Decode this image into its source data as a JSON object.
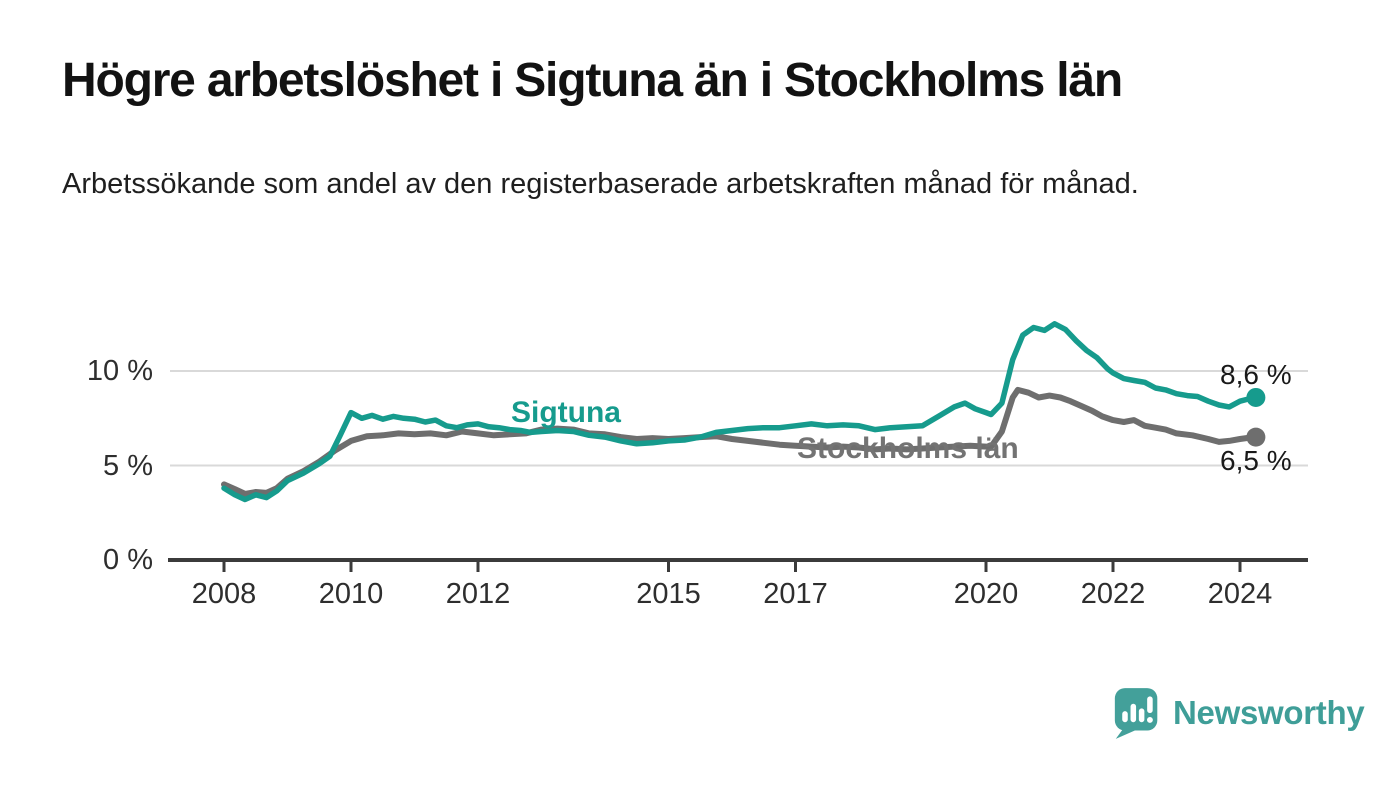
{
  "title": "Högre arbetslöshet i Sigtuna än i Stockholms län",
  "subtitle": "Arbetssökande som andel av den registerbaserade arbetskraften månad för månad.",
  "footer": {
    "brand": "Newsworthy",
    "logo_icon": "bar-chart-speech-bubble-icon"
  },
  "colors": {
    "sigtuna": "#169b8d",
    "stockholm": "#6e6e6e",
    "stockholm_label": "#737373",
    "grid": "#d9d9d9",
    "axis": "#3b3b3b",
    "logo": "#43a09a"
  },
  "chart_data": {
    "type": "line",
    "xlabel": "",
    "ylabel": "",
    "x_ticks": [
      2008,
      2010,
      2012,
      2015,
      2017,
      2020,
      2022,
      2024
    ],
    "x_tick_labels": [
      "2008",
      "2010",
      "2012",
      "2015",
      "2017",
      "2020",
      "2022",
      "2024"
    ],
    "y_ticks": [
      0,
      5,
      10
    ],
    "y_tick_labels": [
      "0 %",
      "5 %",
      "10 %"
    ],
    "ylim": [
      0,
      13.5
    ],
    "xlim": [
      2007.15,
      2025.05
    ],
    "grid": "horizontal",
    "legend_position": "inline-labels",
    "series": [
      {
        "name": "Stockholms län",
        "color": "#6e6e6e",
        "end_label": "6,5 %",
        "end_value": 6.5,
        "x": [
          2008.0,
          2008.17,
          2008.33,
          2008.5,
          2008.67,
          2008.83,
          2009.0,
          2009.25,
          2009.5,
          2009.75,
          2010.0,
          2010.25,
          2010.5,
          2010.75,
          2011.0,
          2011.25,
          2011.5,
          2011.75,
          2012.0,
          2012.25,
          2012.5,
          2012.75,
          2013.0,
          2013.25,
          2013.5,
          2013.75,
          2014.0,
          2014.25,
          2014.5,
          2014.75,
          2015.0,
          2015.25,
          2015.5,
          2015.75,
          2016.0,
          2016.25,
          2016.5,
          2016.75,
          2017.0,
          2017.25,
          2017.5,
          2017.75,
          2018.0,
          2018.25,
          2018.5,
          2018.75,
          2019.0,
          2019.25,
          2019.5,
          2019.75,
          2020.0,
          2020.08,
          2020.25,
          2020.42,
          2020.5,
          2020.67,
          2020.83,
          2021.0,
          2021.17,
          2021.33,
          2021.5,
          2021.67,
          2021.83,
          2022.0,
          2022.17,
          2022.33,
          2022.5,
          2022.67,
          2022.83,
          2023.0,
          2023.25,
          2023.5,
          2023.67,
          2023.83,
          2024.0,
          2024.17,
          2024.25
        ],
        "y": [
          4.0,
          3.75,
          3.5,
          3.6,
          3.55,
          3.8,
          4.3,
          4.7,
          5.2,
          5.8,
          6.3,
          6.55,
          6.6,
          6.7,
          6.65,
          6.7,
          6.6,
          6.8,
          6.7,
          6.6,
          6.65,
          6.7,
          6.9,
          6.95,
          6.9,
          6.7,
          6.65,
          6.5,
          6.4,
          6.45,
          6.4,
          6.45,
          6.5,
          6.55,
          6.4,
          6.3,
          6.2,
          6.1,
          6.05,
          6.0,
          5.95,
          6.0,
          5.95,
          5.85,
          5.9,
          5.85,
          5.9,
          5.95,
          6.0,
          6.05,
          6.0,
          6.0,
          6.8,
          8.6,
          9.0,
          8.85,
          8.6,
          8.7,
          8.6,
          8.4,
          8.15,
          7.9,
          7.6,
          7.4,
          7.3,
          7.4,
          7.1,
          7.0,
          6.9,
          6.7,
          6.6,
          6.4,
          6.25,
          6.3,
          6.4,
          6.48,
          6.5
        ]
      },
      {
        "name": "Sigtuna",
        "color": "#169b8d",
        "end_label": "8,6 %",
        "end_value": 8.6,
        "x": [
          2008.0,
          2008.17,
          2008.33,
          2008.5,
          2008.67,
          2008.83,
          2009.0,
          2009.25,
          2009.5,
          2009.67,
          2009.83,
          2010.0,
          2010.17,
          2010.33,
          2010.5,
          2010.67,
          2010.83,
          2011.0,
          2011.17,
          2011.33,
          2011.5,
          2011.67,
          2011.83,
          2012.0,
          2012.17,
          2012.33,
          2012.5,
          2012.67,
          2012.83,
          2013.0,
          2013.25,
          2013.5,
          2013.75,
          2014.0,
          2014.25,
          2014.5,
          2014.75,
          2015.0,
          2015.25,
          2015.5,
          2015.75,
          2016.0,
          2016.25,
          2016.5,
          2016.75,
          2017.0,
          2017.25,
          2017.5,
          2017.75,
          2018.0,
          2018.25,
          2018.5,
          2018.75,
          2019.0,
          2019.25,
          2019.5,
          2019.67,
          2019.83,
          2020.0,
          2020.08,
          2020.25,
          2020.42,
          2020.58,
          2020.75,
          2020.92,
          2021.08,
          2021.25,
          2021.42,
          2021.58,
          2021.75,
          2021.92,
          2022.0,
          2022.17,
          2022.33,
          2022.5,
          2022.67,
          2022.83,
          2023.0,
          2023.17,
          2023.33,
          2023.5,
          2023.67,
          2023.83,
          2024.0,
          2024.17,
          2024.25
        ],
        "y": [
          3.8,
          3.45,
          3.2,
          3.45,
          3.3,
          3.65,
          4.2,
          4.6,
          5.1,
          5.5,
          6.6,
          7.8,
          7.5,
          7.65,
          7.45,
          7.6,
          7.5,
          7.45,
          7.3,
          7.4,
          7.1,
          7.0,
          7.15,
          7.2,
          7.05,
          7.0,
          6.9,
          6.85,
          6.75,
          6.8,
          6.85,
          6.8,
          6.6,
          6.5,
          6.3,
          6.15,
          6.2,
          6.3,
          6.35,
          6.5,
          6.75,
          6.85,
          6.95,
          7.0,
          7.0,
          7.1,
          7.2,
          7.1,
          7.15,
          7.1,
          6.9,
          7.0,
          7.05,
          7.1,
          7.6,
          8.1,
          8.3,
          8.0,
          7.8,
          7.7,
          8.3,
          10.6,
          11.9,
          12.3,
          12.15,
          12.5,
          12.2,
          11.6,
          11.1,
          10.7,
          10.1,
          9.9,
          9.6,
          9.5,
          9.4,
          9.1,
          9.0,
          8.8,
          8.7,
          8.65,
          8.4,
          8.2,
          8.1,
          8.4,
          8.55,
          8.6
        ]
      }
    ]
  }
}
